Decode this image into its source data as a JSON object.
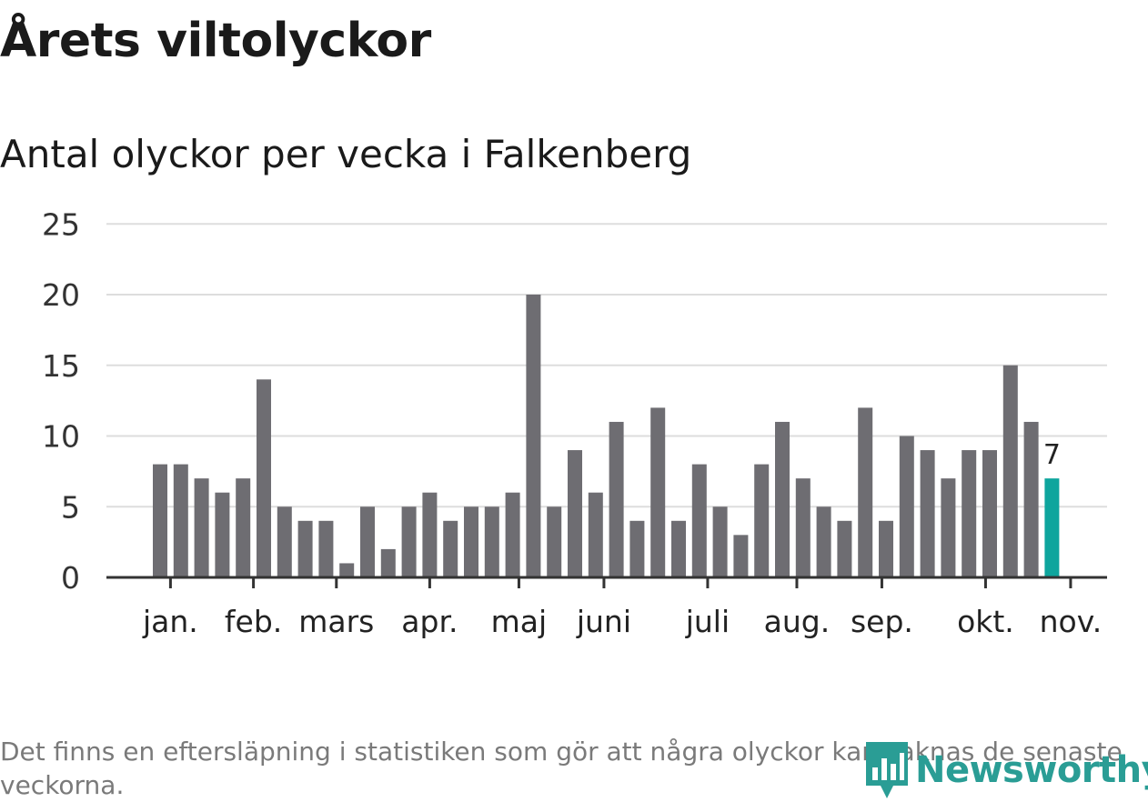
{
  "header": {
    "title": "Årets viltolyckor",
    "subtitle": "Antal olyckor per vecka i Falkenberg"
  },
  "chart_data": {
    "type": "bar",
    "title": "Årets viltolyckor",
    "subtitle": "Antal olyckor per vecka i Falkenberg",
    "xlabel": "",
    "ylabel": "",
    "ylim": [
      0,
      25
    ],
    "yticks": [
      0,
      5,
      10,
      15,
      20,
      25
    ],
    "grid": true,
    "values": [
      8,
      8,
      7,
      6,
      7,
      14,
      5,
      4,
      4,
      1,
      5,
      2,
      5,
      6,
      4,
      5,
      5,
      6,
      20,
      5,
      9,
      6,
      11,
      4,
      12,
      4,
      8,
      5,
      3,
      8,
      11,
      7,
      5,
      4,
      12,
      4,
      10,
      9,
      7,
      9,
      9,
      15,
      11,
      7
    ],
    "month_ticks": [
      {
        "label": "jan.",
        "week_index": 0.5
      },
      {
        "label": "feb.",
        "week_index": 4.5
      },
      {
        "label": "mars",
        "week_index": 8.5
      },
      {
        "label": "apr.",
        "week_index": 13
      },
      {
        "label": "maj",
        "week_index": 17.3
      },
      {
        "label": "juni",
        "week_index": 21.4
      },
      {
        "label": "juli",
        "week_index": 26.4
      },
      {
        "label": "aug.",
        "week_index": 30.7
      },
      {
        "label": "sep.",
        "week_index": 34.8
      },
      {
        "label": "okt.",
        "week_index": 39.8
      },
      {
        "label": "nov.",
        "week_index": 43.9
      }
    ],
    "highlight_index": 43,
    "highlight_label": "7",
    "bar_color": "#6e6d72",
    "highlight_color": "#0ea59d",
    "grid_color": "#dddddd",
    "axis_color": "#333333"
  },
  "footnote": "Det finns en eftersläpning i statistiken som gör att några olyckor kan saknas de senaste veckorna.",
  "logo": {
    "icon": "newsworthy-logo-icon",
    "text": "Newsworthy",
    "color": "#2a9d95"
  }
}
